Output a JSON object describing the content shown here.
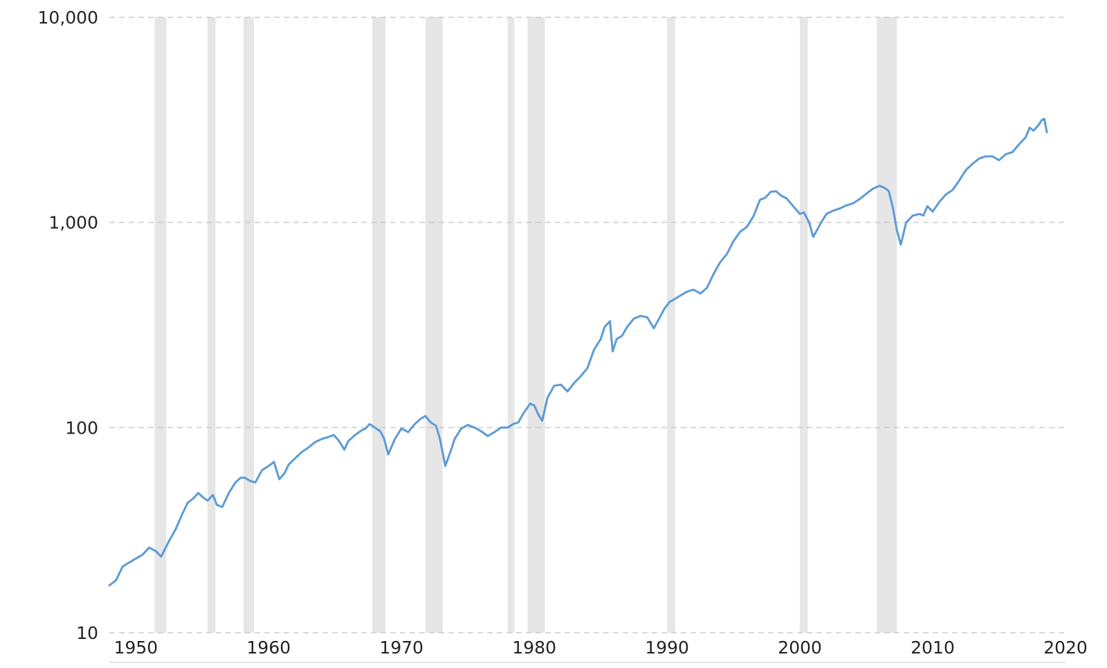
{
  "chart_data": {
    "type": "line",
    "title": "",
    "xlabel": "",
    "ylabel": "",
    "y_scale": "log",
    "xlim": [
      1948,
      2020
    ],
    "ylim": [
      10,
      10000
    ],
    "x_ticks": [
      1950,
      1960,
      1970,
      1980,
      1990,
      2000,
      2010,
      2020
    ],
    "x_tick_labels": [
      "1950",
      "1960",
      "1970",
      "1980",
      "1990",
      "2000",
      "2010",
      "2020"
    ],
    "y_ticks": [
      10,
      100,
      1000,
      10000
    ],
    "y_tick_labels": [
      "10",
      "100",
      "1,000",
      "10,000"
    ],
    "grid": "horizontal dashed",
    "legend": "none",
    "colors": {
      "line": "#5b9bd5",
      "recession": "#e6e6e6",
      "grid": "#cccccc"
    },
    "recessions": [
      [
        1951.4,
        1952.3
      ],
      [
        1955.4,
        1956.0
      ],
      [
        1958.1,
        1958.9
      ],
      [
        1967.8,
        1968.8
      ],
      [
        1971.8,
        1973.1
      ],
      [
        1978.0,
        1978.5
      ],
      [
        1979.5,
        1980.8
      ],
      [
        1990.0,
        1990.6
      ],
      [
        2000.0,
        2000.6
      ],
      [
        2005.8,
        2007.3
      ]
    ],
    "series": [
      {
        "x": [
          1948.0,
          1948.5,
          1949.0,
          1949.5,
          1950.0,
          1950.5,
          1951.0,
          1951.5,
          1951.9,
          1952.5,
          1953.0,
          1953.5,
          1953.9,
          1954.3,
          1954.7,
          1955.0,
          1955.4,
          1955.8,
          1956.1,
          1956.5,
          1957.0,
          1957.5,
          1957.9,
          1958.2,
          1958.6,
          1959.0,
          1959.5,
          1960.0,
          1960.4,
          1960.8,
          1961.2,
          1961.5,
          1962.0,
          1962.5,
          1963.0,
          1963.5,
          1964.0,
          1964.5,
          1964.9,
          1965.3,
          1965.7,
          1966.0,
          1966.5,
          1967.0,
          1967.3,
          1967.6,
          1968.0,
          1968.4,
          1968.7,
          1969.0,
          1969.5,
          1970.0,
          1970.5,
          1971.0,
          1971.4,
          1971.8,
          1972.2,
          1972.6,
          1972.9,
          1973.3,
          1973.8,
          1974.0,
          1974.5,
          1975.0,
          1975.5,
          1976.0,
          1976.5,
          1977.0,
          1977.5,
          1978.0,
          1978.4,
          1978.8,
          1979.2,
          1979.7,
          1980.0,
          1980.3,
          1980.6,
          1981.0,
          1981.5,
          1982.0,
          1982.5,
          1983.0,
          1983.5,
          1984.0,
          1984.5,
          1985.0,
          1985.3,
          1985.7,
          1985.9,
          1986.2,
          1986.6,
          1987.0,
          1987.5,
          1988.0,
          1988.5,
          1989.0,
          1989.4,
          1989.8,
          1990.2,
          1990.5,
          1991.0,
          1991.5,
          1992.0,
          1992.5,
          1993.0,
          1993.5,
          1994.0,
          1994.5,
          1995.0,
          1995.5,
          1996.0,
          1996.5,
          1997.0,
          1997.4,
          1997.8,
          1998.2,
          1998.6,
          1999.0,
          1999.5,
          2000.0,
          2000.3,
          2000.7,
          2001.0,
          2001.3,
          2001.6,
          2002.0,
          2002.5,
          2003.0,
          2003.5,
          2004.0,
          2004.5,
          2005.0,
          2005.5,
          2006.0,
          2006.4,
          2006.7,
          2007.0,
          2007.3,
          2007.6,
          2008.0,
          2008.5,
          2009.0,
          2009.3,
          2009.6,
          2010.0,
          2010.5,
          2011.0,
          2011.5,
          2012.0,
          2012.5,
          2013.0,
          2013.5,
          2014.0,
          2014.5,
          2015.0,
          2015.5,
          2016.0,
          2016.5,
          2017.0,
          2017.3,
          2017.6,
          2018.0,
          2018.2,
          2018.4,
          2018.6
        ],
        "y": [
          17,
          18,
          21,
          22,
          23,
          24,
          26,
          25,
          23.5,
          28,
          32,
          38,
          43,
          45,
          48,
          46,
          44,
          47,
          42,
          41,
          48,
          54,
          57,
          57,
          55,
          54,
          62,
          65,
          68,
          56,
          60,
          66,
          71,
          76,
          80,
          85,
          88,
          90,
          92,
          86,
          78,
          86,
          92,
          97,
          99,
          104,
          100,
          96,
          88,
          74,
          88,
          99,
          95,
          104,
          110,
          114,
          106,
          102,
          88,
          65,
          80,
          88,
          99,
          103,
          100,
          96,
          91,
          95,
          100,
          100,
          104,
          106,
          118,
          131,
          128,
          116,
          108,
          140,
          160,
          162,
          150,
          165,
          178,
          195,
          240,
          270,
          310,
          330,
          235,
          270,
          280,
          310,
          340,
          350,
          345,
          305,
          340,
          380,
          410,
          420,
          440,
          460,
          470,
          450,
          480,
          560,
          640,
          700,
          810,
          900,
          950,
          1070,
          1290,
          1320,
          1410,
          1420,
          1350,
          1310,
          1200,
          1100,
          1120,
          1000,
          850,
          920,
          1000,
          1100,
          1140,
          1170,
          1210,
          1240,
          1300,
          1380,
          1460,
          1510,
          1470,
          1420,
          1180,
          920,
          780,
          1000,
          1080,
          1100,
          1080,
          1200,
          1130,
          1260,
          1370,
          1440,
          1600,
          1800,
          1930,
          2050,
          2100,
          2100,
          2010,
          2150,
          2200,
          2400,
          2600,
          2900,
          2800,
          3000,
          3150,
          3200,
          2750
        ]
      }
    ]
  }
}
